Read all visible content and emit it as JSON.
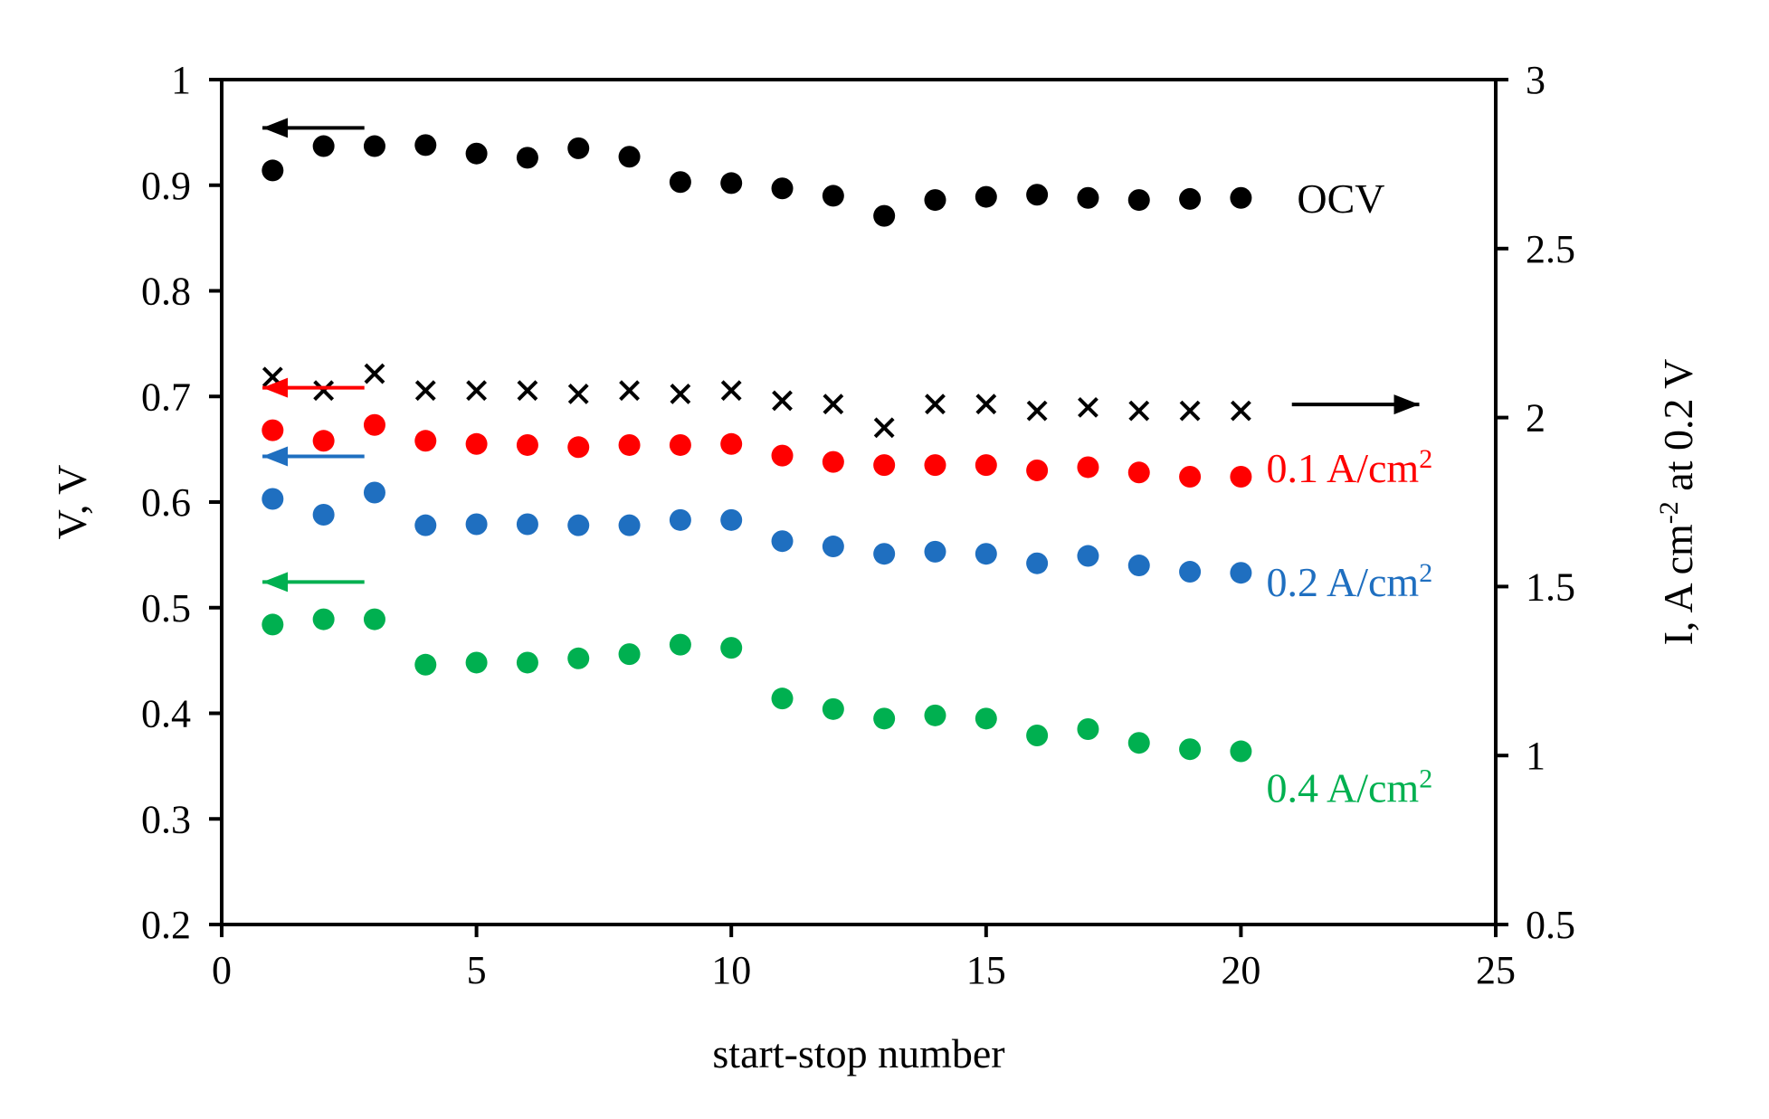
{
  "chart_data": {
    "type": "scatter",
    "xlabel": "start-stop number",
    "ylabel": "V, V",
    "y2label": {
      "main": "I, A cm",
      "sup": "-2",
      "rest": " at 0.2 V"
    },
    "xlim": [
      0,
      25
    ],
    "ylim": [
      0.2,
      1
    ],
    "y2lim": [
      0.5,
      3
    ],
    "xticks": [
      0,
      5,
      10,
      15,
      20,
      25
    ],
    "yticks": [
      0.2,
      0.3,
      0.4,
      0.5,
      0.6,
      0.7,
      0.8,
      0.9,
      1
    ],
    "y2ticks": [
      0.5,
      1,
      1.5,
      2,
      2.5,
      3
    ],
    "grid": false,
    "x": [
      1,
      2,
      3,
      4,
      5,
      6,
      7,
      8,
      9,
      10,
      11,
      12,
      13,
      14,
      15,
      16,
      17,
      18,
      19,
      20
    ],
    "series": [
      {
        "name": "OCV",
        "label": "OCV",
        "label_sup": "",
        "axis": "left",
        "marker": "circle",
        "color": "#000000",
        "values": [
          0.914,
          0.937,
          0.937,
          0.938,
          0.93,
          0.926,
          0.935,
          0.927,
          0.903,
          0.902,
          0.897,
          0.89,
          0.871,
          0.886,
          0.889,
          0.891,
          0.888,
          0.886,
          0.887,
          0.888
        ]
      },
      {
        "name": "I at 0.2 V",
        "label": "",
        "label_sup": "",
        "axis": "right",
        "marker": "cross",
        "color": "#000000",
        "values": [
          2.12,
          2.08,
          2.13,
          2.08,
          2.08,
          2.08,
          2.07,
          2.08,
          2.07,
          2.08,
          2.05,
          2.04,
          1.97,
          2.04,
          2.04,
          2.02,
          2.03,
          2.02,
          2.02,
          2.02
        ]
      },
      {
        "name": "0.1 A/cm2",
        "label": "0.1 A/cm",
        "label_sup": "2",
        "axis": "left",
        "marker": "circle",
        "color": "#ff0000",
        "values": [
          0.668,
          0.658,
          0.673,
          0.658,
          0.655,
          0.654,
          0.652,
          0.654,
          0.654,
          0.655,
          0.644,
          0.638,
          0.635,
          0.635,
          0.635,
          0.63,
          0.633,
          0.628,
          0.624,
          0.624
        ]
      },
      {
        "name": "0.2 A/cm2",
        "label": "0.2 A/cm",
        "label_sup": "2",
        "axis": "left",
        "marker": "circle",
        "color": "#1f6fc0",
        "values": [
          0.603,
          0.588,
          0.609,
          0.578,
          0.579,
          0.579,
          0.578,
          0.578,
          0.583,
          0.583,
          0.563,
          0.558,
          0.551,
          0.553,
          0.551,
          0.542,
          0.549,
          0.54,
          0.534,
          0.533
        ]
      },
      {
        "name": "0.4 A/cm2",
        "label": "0.4 A/cm",
        "label_sup": "2",
        "axis": "left",
        "marker": "circle",
        "color": "#00b050",
        "values": [
          0.484,
          0.489,
          0.489,
          0.446,
          0.448,
          0.448,
          0.452,
          0.456,
          0.465,
          0.462,
          0.414,
          0.404,
          0.395,
          0.398,
          0.395,
          0.379,
          0.385,
          0.372,
          0.366,
          0.364
        ]
      }
    ],
    "annotations": [
      {
        "type": "arrow",
        "direction": "left",
        "color": "#000000",
        "series": "OCV"
      },
      {
        "type": "arrow",
        "direction": "right",
        "color": "#000000",
        "series": "I at 0.2 V"
      },
      {
        "type": "arrow",
        "direction": "left",
        "color": "#ff0000",
        "series": "0.1 A/cm2"
      },
      {
        "type": "arrow",
        "direction": "left",
        "color": "#1f6fc0",
        "series": "0.2 A/cm2"
      },
      {
        "type": "arrow",
        "direction": "left",
        "color": "#00b050",
        "series": "0.4 A/cm2"
      }
    ]
  }
}
